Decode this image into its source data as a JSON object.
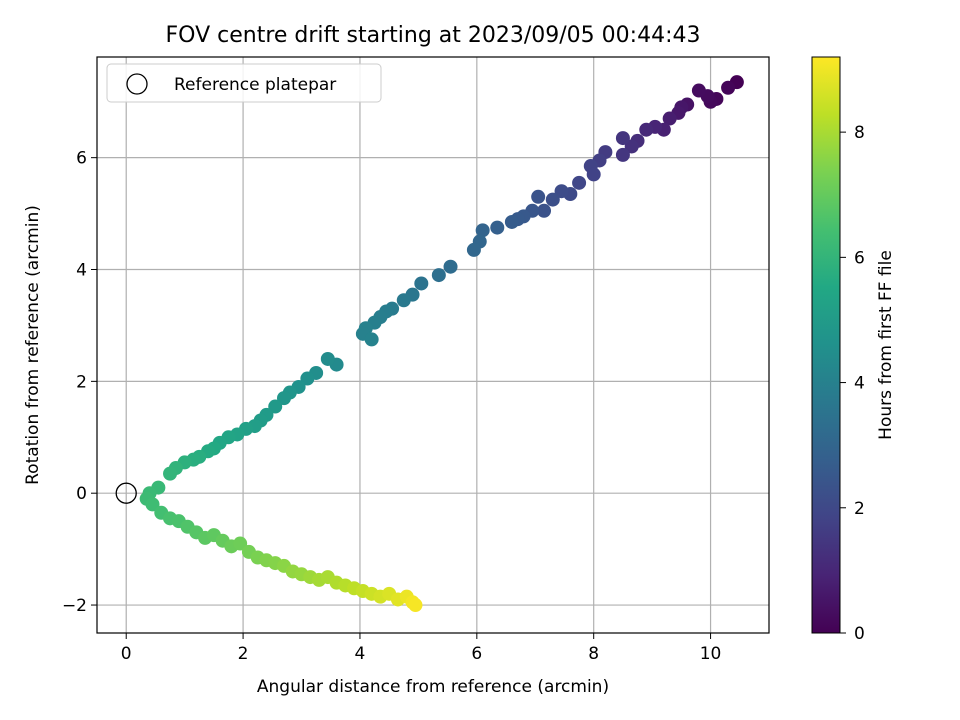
{
  "chart_data": {
    "type": "scatter",
    "title": "FOV centre drift starting at 2023/09/05 00:44:43",
    "xlabel": "Angular distance from reference (arcmin)",
    "ylabel": "Rotation from reference (arcmin)",
    "xlim": [
      -0.5,
      11.0
    ],
    "ylim": [
      -2.5,
      7.8
    ],
    "xticks": [
      0,
      2,
      4,
      6,
      8,
      10
    ],
    "yticks": [
      -2,
      0,
      2,
      4,
      6
    ],
    "grid": true,
    "legend": {
      "position": "top-left",
      "entries": [
        "Reference platepar"
      ]
    },
    "reference_point": {
      "x": 0,
      "y": 0,
      "label": "Reference platepar"
    },
    "colorbar": {
      "label": "Hours from first FF file",
      "colormap": "viridis",
      "range": [
        0,
        9.2
      ],
      "ticks": [
        0,
        2,
        4,
        6,
        8
      ]
    },
    "series": [
      {
        "points": [
          [
            10.45,
            7.35,
            0.0
          ],
          [
            10.3,
            7.25,
            0.1
          ],
          [
            10.1,
            7.05,
            0.15
          ],
          [
            10.0,
            7.0,
            0.2
          ],
          [
            9.95,
            7.1,
            0.25
          ],
          [
            9.8,
            7.2,
            0.3
          ],
          [
            9.6,
            6.95,
            0.45
          ],
          [
            9.5,
            6.9,
            0.55
          ],
          [
            9.45,
            6.8,
            0.6
          ],
          [
            9.3,
            6.7,
            0.75
          ],
          [
            9.2,
            6.5,
            0.85
          ],
          [
            9.05,
            6.55,
            0.95
          ],
          [
            8.9,
            6.5,
            1.05
          ],
          [
            8.75,
            6.3,
            1.2
          ],
          [
            8.65,
            6.2,
            1.3
          ],
          [
            8.5,
            6.35,
            1.4
          ],
          [
            8.5,
            6.05,
            1.45
          ],
          [
            8.2,
            6.1,
            1.6
          ],
          [
            8.1,
            5.95,
            1.7
          ],
          [
            7.95,
            5.85,
            1.8
          ],
          [
            8.0,
            5.7,
            1.82
          ],
          [
            7.75,
            5.55,
            1.95
          ],
          [
            7.6,
            5.35,
            2.05
          ],
          [
            7.45,
            5.4,
            2.1
          ],
          [
            7.3,
            5.25,
            2.2
          ],
          [
            7.15,
            5.05,
            2.3
          ],
          [
            7.05,
            5.3,
            2.35
          ],
          [
            6.95,
            5.05,
            2.45
          ],
          [
            6.8,
            4.95,
            2.55
          ],
          [
            6.7,
            4.9,
            2.6
          ],
          [
            6.6,
            4.85,
            2.65
          ],
          [
            6.35,
            4.75,
            2.8
          ],
          [
            6.1,
            4.7,
            2.95
          ],
          [
            6.05,
            4.5,
            3.0
          ],
          [
            5.95,
            4.35,
            3.05
          ],
          [
            5.55,
            4.05,
            3.25
          ],
          [
            5.35,
            3.9,
            3.35
          ],
          [
            5.05,
            3.75,
            3.5
          ],
          [
            4.9,
            3.55,
            3.6
          ],
          [
            4.75,
            3.45,
            3.7
          ],
          [
            4.55,
            3.3,
            3.8
          ],
          [
            4.45,
            3.25,
            3.85
          ],
          [
            4.35,
            3.15,
            3.9
          ],
          [
            4.25,
            3.05,
            3.95
          ],
          [
            4.1,
            2.95,
            4.0
          ],
          [
            4.05,
            2.85,
            4.02
          ],
          [
            4.2,
            2.75,
            4.05
          ],
          [
            3.6,
            2.3,
            4.35
          ],
          [
            3.45,
            2.4,
            4.4
          ],
          [
            3.25,
            2.15,
            4.5
          ],
          [
            3.1,
            2.05,
            4.55
          ],
          [
            2.95,
            1.9,
            4.65
          ],
          [
            2.8,
            1.8,
            4.75
          ],
          [
            2.7,
            1.7,
            4.8
          ],
          [
            2.55,
            1.55,
            4.9
          ],
          [
            2.4,
            1.4,
            5.0
          ],
          [
            2.3,
            1.3,
            5.05
          ],
          [
            2.2,
            1.2,
            5.1
          ],
          [
            2.05,
            1.15,
            5.2
          ],
          [
            1.9,
            1.05,
            5.3
          ],
          [
            1.75,
            1.0,
            5.4
          ],
          [
            1.6,
            0.9,
            5.45
          ],
          [
            1.5,
            0.8,
            5.55
          ],
          [
            1.4,
            0.75,
            5.6
          ],
          [
            1.25,
            0.65,
            5.7
          ],
          [
            1.15,
            0.6,
            5.75
          ],
          [
            1.0,
            0.55,
            5.85
          ],
          [
            0.85,
            0.45,
            5.95
          ],
          [
            0.75,
            0.35,
            6.0
          ],
          [
            0.55,
            0.1,
            6.15
          ],
          [
            0.4,
            0.0,
            6.2
          ],
          [
            0.35,
            -0.1,
            6.25
          ],
          [
            0.45,
            -0.2,
            6.3
          ],
          [
            0.6,
            -0.35,
            6.4
          ],
          [
            0.75,
            -0.45,
            6.5
          ],
          [
            0.9,
            -0.5,
            6.55
          ],
          [
            1.05,
            -0.6,
            6.65
          ],
          [
            1.2,
            -0.7,
            6.75
          ],
          [
            1.35,
            -0.8,
            6.85
          ],
          [
            1.5,
            -0.75,
            6.9
          ],
          [
            1.65,
            -0.85,
            7.0
          ],
          [
            1.8,
            -0.95,
            7.1
          ],
          [
            1.95,
            -0.9,
            7.15
          ],
          [
            2.1,
            -1.05,
            7.25
          ],
          [
            2.25,
            -1.15,
            7.35
          ],
          [
            2.4,
            -1.2,
            7.45
          ],
          [
            2.55,
            -1.25,
            7.5
          ],
          [
            2.7,
            -1.3,
            7.6
          ],
          [
            2.85,
            -1.4,
            7.7
          ],
          [
            3.0,
            -1.45,
            7.75
          ],
          [
            3.15,
            -1.5,
            7.85
          ],
          [
            3.3,
            -1.55,
            7.95
          ],
          [
            3.45,
            -1.5,
            8.0
          ],
          [
            3.6,
            -1.6,
            8.1
          ],
          [
            3.75,
            -1.65,
            8.2
          ],
          [
            3.9,
            -1.7,
            8.3
          ],
          [
            4.05,
            -1.75,
            8.4
          ],
          [
            4.2,
            -1.8,
            8.5
          ],
          [
            4.35,
            -1.85,
            8.6
          ],
          [
            4.5,
            -1.8,
            8.7
          ],
          [
            4.65,
            -1.9,
            8.8
          ],
          [
            4.8,
            -1.85,
            8.95
          ],
          [
            4.9,
            -1.95,
            9.05
          ],
          [
            4.95,
            -2.0,
            9.1
          ]
        ]
      }
    ]
  }
}
